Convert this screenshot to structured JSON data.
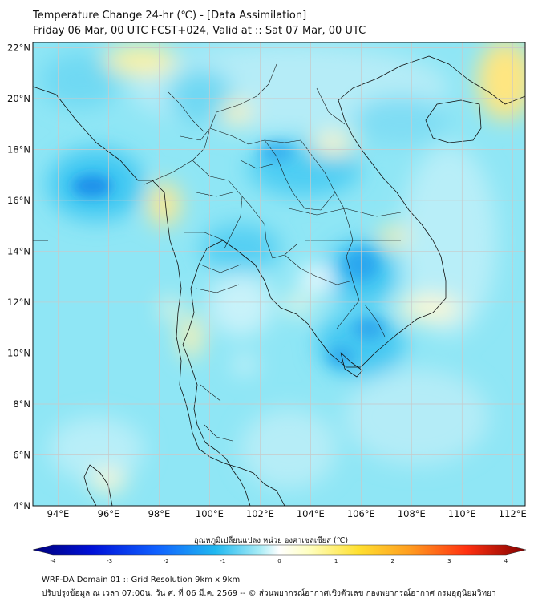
{
  "header": {
    "title": "Temperature Change 24-hr (℃) - [Data Assimilation]",
    "subtitle": "Friday 06 Mar, 00 UTC FCST+024, Valid at :: Sat 07 Mar, 00 UTC"
  },
  "map": {
    "lat_labels": [
      "22°N",
      "20°N",
      "18°N",
      "16°N",
      "14°N",
      "12°N",
      "10°N",
      "8°N",
      "6°N",
      "4°N"
    ],
    "lat_values": [
      22,
      20,
      18,
      16,
      14,
      12,
      10,
      8,
      6,
      4
    ],
    "lon_labels": [
      "94°E",
      "96°E",
      "98°E",
      "100°E",
      "102°E",
      "104°E",
      "106°E",
      "108°E",
      "110°E",
      "112°E"
    ],
    "lon_values": [
      94,
      96,
      98,
      100,
      102,
      104,
      106,
      108,
      110,
      112
    ],
    "lon_range": [
      93,
      112.5
    ],
    "lat_range": [
      4,
      22.2
    ],
    "colors": {
      "ocean_base": "#8fe6f5",
      "land_base": "#b8ecf7",
      "coast": "#111111",
      "grid": "#c9c9c9"
    }
  },
  "colorbar": {
    "title": "อุณหภูมิเปลี่ยนแปลง หน่วย องศาเซลเซียส (℃)",
    "tick_labels": [
      "-4",
      "-3",
      "-2",
      "-1",
      "0",
      "1",
      "2",
      "3",
      "4"
    ],
    "range": [
      -4,
      4
    ],
    "colors": [
      "#00007a",
      "#0010d8",
      "#1060ff",
      "#20b8f0",
      "#a8ecf6",
      "#ffffff",
      "#ffffc0",
      "#ffe030",
      "#ffa020",
      "#ff3010",
      "#800000"
    ]
  },
  "footer": {
    "line1": "WRF-DA Domain 01 :: Grid Resolution 9km x 9km",
    "line2": "ปรับปรุงข้อมูล ณ เวลา 07:00น. วัน ศ. ที่ 06 มี.ค. 2569 -- © ส่วนพยากรณ์อากาศเชิงตัวเลข กองพยากรณ์อากาศ กรมอุตุนิยมวิทยา"
  }
}
